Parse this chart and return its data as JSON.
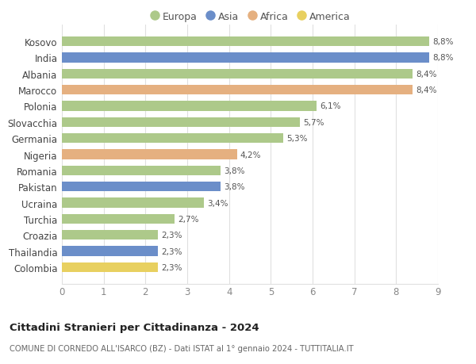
{
  "countries": [
    "Kosovo",
    "India",
    "Albania",
    "Marocco",
    "Polonia",
    "Slovacchia",
    "Germania",
    "Nigeria",
    "Romania",
    "Pakistan",
    "Ucraina",
    "Turchia",
    "Croazia",
    "Thailandia",
    "Colombia"
  ],
  "values": [
    8.8,
    8.8,
    8.4,
    8.4,
    6.1,
    5.7,
    5.3,
    4.2,
    3.8,
    3.8,
    3.4,
    2.7,
    2.3,
    2.3,
    2.3
  ],
  "labels": [
    "8,8%",
    "8,8%",
    "8,4%",
    "8,4%",
    "6,1%",
    "5,7%",
    "5,3%",
    "4,2%",
    "3,8%",
    "3,8%",
    "3,4%",
    "2,7%",
    "2,3%",
    "2,3%",
    "2,3%"
  ],
  "continents": [
    "Europa",
    "Asia",
    "Europa",
    "Africa",
    "Europa",
    "Europa",
    "Europa",
    "Africa",
    "Europa",
    "Asia",
    "Europa",
    "Europa",
    "Europa",
    "Asia",
    "America"
  ],
  "colors": {
    "Europa": "#adc98a",
    "Asia": "#6b8ec9",
    "Africa": "#e5b080",
    "America": "#e8d060"
  },
  "legend_order": [
    "Europa",
    "Asia",
    "Africa",
    "America"
  ],
  "title": "Cittadini Stranieri per Cittadinanza - 2024",
  "subtitle": "COMUNE DI CORNEDO ALL'ISARCO (BZ) - Dati ISTAT al 1° gennaio 2024 - TUTTITALIA.IT",
  "xlim": [
    0,
    9
  ],
  "xticks": [
    0,
    1,
    2,
    3,
    4,
    5,
    6,
    7,
    8,
    9
  ],
  "background_color": "#ffffff",
  "grid_color": "#e0e0e0"
}
